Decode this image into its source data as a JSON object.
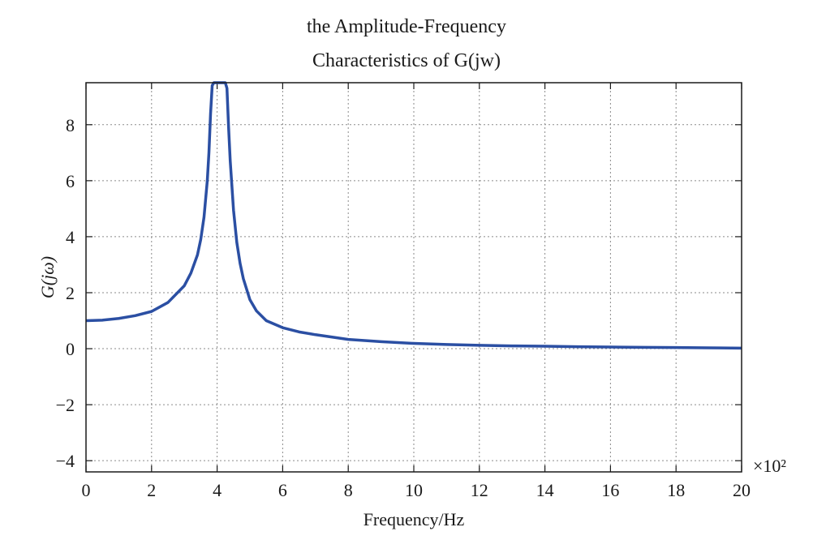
{
  "chart_data": {
    "type": "line",
    "title_lines": [
      "the Amplitude-Frequency",
      "Characteristics of G(jw)"
    ],
    "xlabel": "Frequency/Hz",
    "ylabel": "G(jω)",
    "x_multiplier_label": "×10²",
    "xlim": [
      0,
      20
    ],
    "ylim": [
      -4.4,
      9.5
    ],
    "xticks": [
      0,
      2,
      4,
      6,
      8,
      10,
      12,
      14,
      16,
      18,
      20
    ],
    "yticks": [
      -4,
      -2,
      0,
      2,
      4,
      6,
      8
    ],
    "ytick_labels": [
      "−4",
      "−2",
      "0",
      "2",
      "4",
      "6",
      "8"
    ],
    "grid": true,
    "line_color": "#2b4fa3",
    "series": [
      {
        "x": [
          0,
          0.5,
          1,
          1.5,
          2,
          2.5,
          3,
          3.2,
          3.4,
          3.5,
          3.6,
          3.7,
          3.75,
          3.8,
          3.85,
          3.9,
          4.25,
          4.3,
          4.35,
          4.4,
          4.5,
          4.6,
          4.7,
          4.8,
          5,
          5.2,
          5.5,
          6,
          6.5,
          7,
          8,
          9,
          10,
          11,
          12,
          13,
          14,
          15,
          16,
          17,
          18,
          19,
          20
        ],
        "y": [
          1.0,
          1.02,
          1.08,
          1.18,
          1.33,
          1.65,
          2.25,
          2.7,
          3.35,
          3.9,
          4.7,
          6.0,
          7.0,
          8.4,
          9.4,
          9.5,
          9.5,
          9.3,
          7.9,
          6.7,
          4.95,
          3.8,
          3.05,
          2.5,
          1.75,
          1.35,
          1.0,
          0.75,
          0.6,
          0.5,
          0.33,
          0.25,
          0.19,
          0.15,
          0.12,
          0.1,
          0.09,
          0.07,
          0.06,
          0.05,
          0.04,
          0.03,
          0.02
        ]
      }
    ]
  }
}
